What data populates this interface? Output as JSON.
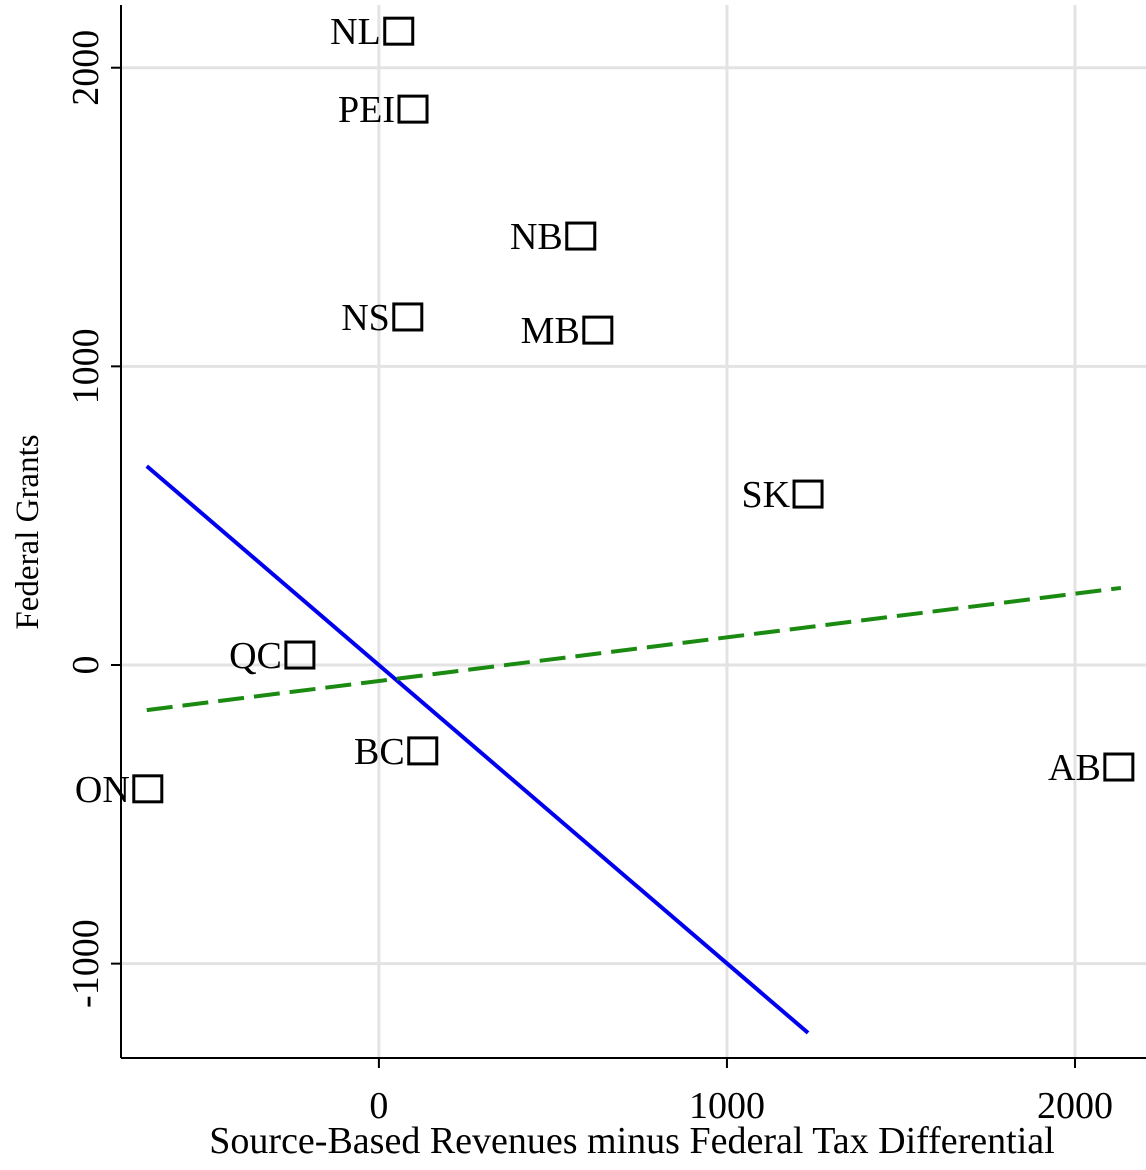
{
  "chart_data": {
    "type": "scatter",
    "xlabel": "Source-Based Revenues minus Federal Tax Differential",
    "ylabel": "Federal Grants",
    "xlim": [
      -741,
      2204
    ],
    "ylim": [
      -1316,
      2210
    ],
    "xticks": [
      0,
      1000,
      2000
    ],
    "yticks": [
      -1000,
      0,
      1000,
      2000
    ],
    "grid": true,
    "categories": [
      "NL",
      "PEI",
      "NB",
      "NS",
      "MB",
      "SK",
      "QC",
      "BC",
      "ON",
      "AB"
    ],
    "x": [
      57,
      98,
      580,
      83,
      629,
      1233,
      -227,
      126,
      -664,
      2126
    ],
    "values": [
      2119,
      1858,
      1433,
      1162,
      1118,
      569,
      30,
      -291,
      -418,
      -345
    ],
    "color": "#000000",
    "lines": [
      {
        "color": "#0000ee",
        "dash": false,
        "x": [
          -667,
          1233
        ],
        "values": [
          666,
          -1232
        ]
      },
      {
        "color": "#1a8a10",
        "dash": true,
        "x": [
          -667,
          2132
        ],
        "values": [
          -151,
          258
        ]
      }
    ]
  }
}
